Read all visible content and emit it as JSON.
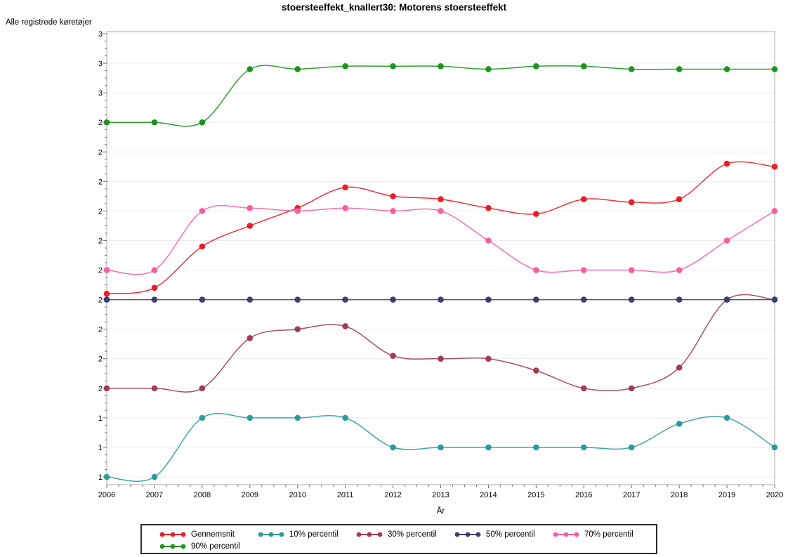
{
  "title": "stoersteeffekt_knallert30: Motorens stoersteeffekt",
  "y_axis_label": "Alle registrede køretøjer",
  "x_axis_label": "År",
  "chart_data": {
    "type": "line",
    "title": "stoersteeffekt_knallert30: Motorens stoersteeffekt",
    "xlabel": "År",
    "ylabel": "Alle registrede køretøjer",
    "grid": "horizontal",
    "legend_position": "bottom",
    "x": [
      2006,
      2007,
      2008,
      2009,
      2010,
      2011,
      2012,
      2013,
      2014,
      2015,
      2016,
      2017,
      2018,
      2019,
      2020
    ],
    "x_tick_labels": [
      "2006",
      "2007",
      "2008",
      "2009",
      "2010",
      "2011",
      "2012",
      "2013",
      "2014",
      "2015",
      "2016",
      "2017",
      "2018",
      "2019",
      "2020"
    ],
    "y_tick_labels": [
      "3",
      "3",
      "3",
      "2",
      "2",
      "2",
      "2",
      "2",
      "2",
      "2",
      "2",
      "2",
      "2",
      "1",
      "1",
      "1"
    ],
    "ylim": [
      1.25,
      2.75
    ],
    "y_tick_step": 0.1,
    "series": [
      {
        "name": "Gennemsnit",
        "color": "#ed1c28",
        "values": [
          1.87,
          1.89,
          2.03,
          2.1,
          2.16,
          2.23,
          2.2,
          2.19,
          2.16,
          2.14,
          2.19,
          2.18,
          2.19,
          2.31,
          2.3
        ]
      },
      {
        "name": "10% percentil",
        "color": "#2b9b9b",
        "values": [
          1.25,
          1.25,
          1.45,
          1.45,
          1.45,
          1.45,
          1.35,
          1.35,
          1.35,
          1.35,
          1.35,
          1.35,
          1.43,
          1.45,
          1.35
        ]
      },
      {
        "name": "30% percentil",
        "color": "#a33c52",
        "values": [
          1.55,
          1.55,
          1.55,
          1.72,
          1.75,
          1.76,
          1.66,
          1.65,
          1.65,
          1.61,
          1.55,
          1.55,
          1.62,
          1.85,
          1.85
        ]
      },
      {
        "name": "50% percentil",
        "color": "#3e3e6e",
        "values": [
          1.85,
          1.85,
          1.85,
          1.85,
          1.85,
          1.85,
          1.85,
          1.85,
          1.85,
          1.85,
          1.85,
          1.85,
          1.85,
          1.85,
          1.85
        ]
      },
      {
        "name": "70% percentil",
        "color": "#f55fa2",
        "values": [
          1.95,
          1.95,
          2.15,
          2.16,
          2.15,
          2.16,
          2.15,
          2.15,
          2.05,
          1.95,
          1.95,
          1.95,
          1.95,
          2.05,
          2.15
        ]
      },
      {
        "name": "90% percentil",
        "color": "#1b941b",
        "values": [
          2.45,
          2.45,
          2.45,
          2.63,
          2.63,
          2.64,
          2.64,
          2.64,
          2.63,
          2.64,
          2.64,
          2.63,
          2.63,
          2.63,
          2.63
        ]
      }
    ]
  }
}
